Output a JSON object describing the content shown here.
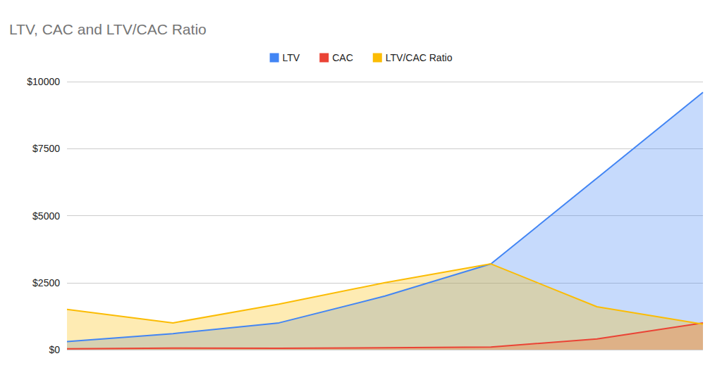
{
  "chart_data": {
    "type": "area",
    "title": "LTV, CAC and LTV/CAC Ratio",
    "categories": [
      null,
      null,
      null,
      null,
      null,
      null,
      null
    ],
    "series": [
      {
        "name": "LTV",
        "color": "#4285f4",
        "values": [
          300,
          600,
          1000,
          2000,
          3200,
          6400,
          9600
        ]
      },
      {
        "name": "CAC",
        "color": "#ea4335",
        "values": [
          30,
          60,
          50,
          70,
          100,
          400,
          1000
        ]
      },
      {
        "name": "LTV/CAC Ratio",
        "color": "#fbbc04",
        "values": [
          1500,
          1000,
          1700,
          2500,
          3200,
          1600,
          950
        ]
      }
    ],
    "ylim": [
      0,
      10000
    ],
    "yticks": [
      {
        "value": 0,
        "label": "$0"
      },
      {
        "value": 2500,
        "label": "$2500"
      },
      {
        "value": 5000,
        "label": "$5000"
      },
      {
        "value": 7500,
        "label": "$7500"
      },
      {
        "value": 10000,
        "label": "$10000"
      }
    ],
    "grid": true,
    "legend": "top",
    "tick_labels": "y"
  }
}
